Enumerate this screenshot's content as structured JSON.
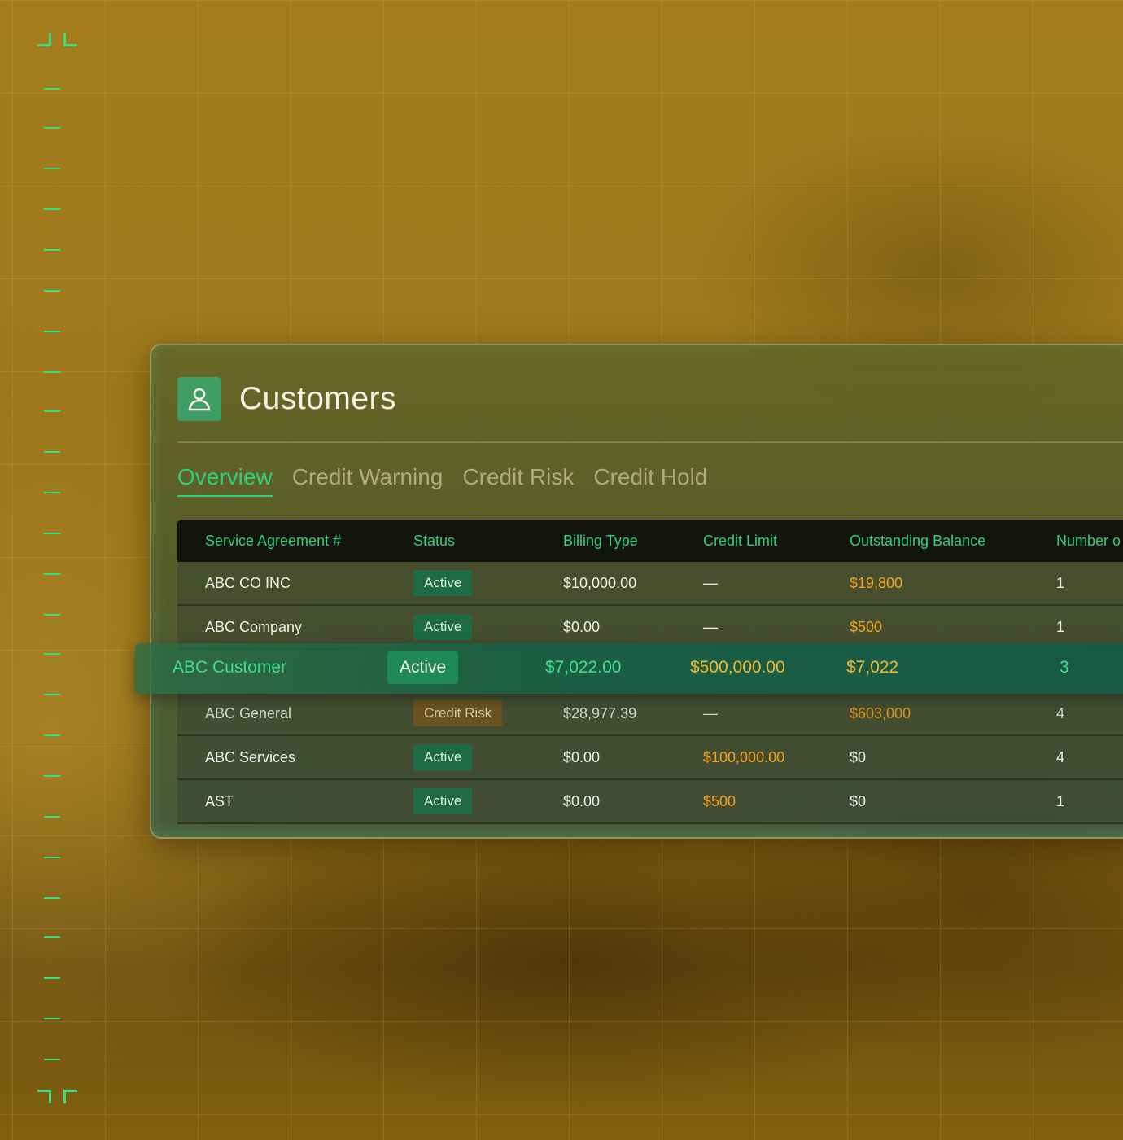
{
  "page": {
    "title": "Customers",
    "icon": "user-icon"
  },
  "tabs": [
    {
      "label": "Overview",
      "active": true
    },
    {
      "label": "Credit Warning",
      "active": false
    },
    {
      "label": "Credit Risk",
      "active": false
    },
    {
      "label": "Credit Hold",
      "active": false
    }
  ],
  "table": {
    "columns": [
      "Service Agreement #",
      "Status",
      "Billing Type",
      "Credit Limit",
      "Outstanding Balance",
      "Number o"
    ],
    "rows": [
      {
        "name": "ABC CO INC",
        "status": "Active",
        "billing": "$10,000.00",
        "limit": "—",
        "balance": "$19,800",
        "number": "1"
      },
      {
        "name": "ABC Company",
        "status": "Active",
        "billing": "$0.00",
        "limit": "—",
        "balance": "$500",
        "number": "1"
      },
      {
        "name": "ABC General",
        "status": "Credit Risk",
        "billing": "$28,977.39",
        "limit": "—",
        "balance": "$603,000",
        "number": "4"
      },
      {
        "name": "ABC Services",
        "status": "Active",
        "billing": "$0.00",
        "limit": "$100,000.00",
        "balance": "$0",
        "number": "4"
      },
      {
        "name": "AST",
        "status": "Active",
        "billing": "$0.00",
        "limit": "$500",
        "balance": "$0",
        "number": "1"
      }
    ],
    "highlighted": {
      "name": "ABC Customer",
      "status": "Active",
      "billing": "$7,022.00",
      "limit": "$500,000.00",
      "balance": "$7,022",
      "number": "3"
    }
  },
  "colors": {
    "accent": "#2fd07c",
    "warning": "#f2a21e",
    "active_badge": "#1f6b45",
    "risk_badge": "#6b5422"
  }
}
